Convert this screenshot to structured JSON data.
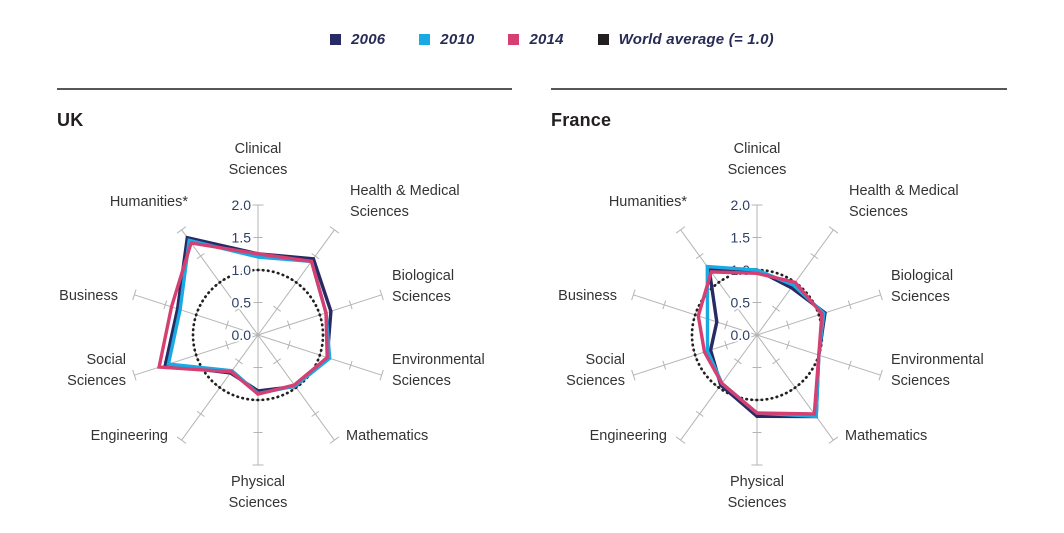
{
  "legend": {
    "items": [
      {
        "label": "2006",
        "color": "#272a63"
      },
      {
        "label": "2010",
        "color": "#19a9e3"
      },
      {
        "label": "2014",
        "color": "#d63f72"
      },
      {
        "label": "World average (= 1.0)",
        "color": "#231f20"
      }
    ]
  },
  "chart_data": [
    {
      "type": "radar",
      "title": "UK",
      "categories": [
        "Clinical Sciences",
        "Health & Medical Sciences",
        "Biological Sciences",
        "Environmental Sciences",
        "Mathematics",
        "Physical Sciences",
        "Engineering",
        "Social Sciences",
        "Business",
        "Humanities*"
      ],
      "category_lines": [
        [
          "Clinical",
          "Sciences"
        ],
        [
          "Health & Medical",
          "Sciences"
        ],
        [
          "Biological",
          "Sciences"
        ],
        [
          "Environmental",
          "Sciences"
        ],
        [
          "Mathematics"
        ],
        [
          "Physical",
          "Sciences"
        ],
        [
          "Engineering"
        ],
        [
          "Social",
          "Sciences"
        ],
        [
          "Business"
        ],
        [
          "Humanities*"
        ]
      ],
      "series": [
        {
          "name": "2006",
          "color": "#272a63",
          "values": [
            1.25,
            1.45,
            1.18,
            1.12,
            0.98,
            0.86,
            0.72,
            1.5,
            1.3,
            1.85
          ]
        },
        {
          "name": "2010",
          "color": "#19a9e3",
          "values": [
            1.2,
            1.4,
            1.1,
            1.16,
            0.97,
            0.9,
            0.68,
            1.45,
            1.26,
            1.8
          ]
        },
        {
          "name": "2014",
          "color": "#d63f72",
          "values": [
            1.25,
            1.4,
            1.1,
            1.12,
            0.95,
            0.91,
            0.7,
            1.6,
            1.4,
            1.75
          ]
        }
      ],
      "reference": {
        "name": "World average (= 1.0)",
        "value": 1.0,
        "style": "dotted",
        "color": "#231f20"
      },
      "r_axis": {
        "min": 0,
        "max": 2,
        "ticks": [
          "0.0",
          "0.5",
          "1.0",
          "1.5",
          "2.0"
        ]
      },
      "legend_position": "top",
      "grid": false
    },
    {
      "type": "radar",
      "title": "France",
      "categories": [
        "Clinical Sciences",
        "Health & Medical Sciences",
        "Biological Sciences",
        "Environmental Sciences",
        "Mathematics",
        "Physical Sciences",
        "Engineering",
        "Social Sciences",
        "Business",
        "Humanities*"
      ],
      "category_lines": [
        [
          "Clinical",
          "Sciences"
        ],
        [
          "Health & Medical",
          "Sciences"
        ],
        [
          "Biological",
          "Sciences"
        ],
        [
          "Environmental",
          "Sciences"
        ],
        [
          "Mathematics"
        ],
        [
          "Physical",
          "Sciences"
        ],
        [
          "Engineering"
        ],
        [
          "Social",
          "Sciences"
        ],
        [
          "Business"
        ],
        [
          "Humanities*"
        ]
      ],
      "series": [
        {
          "name": "2006",
          "color": "#272a63",
          "values": [
            1.0,
            0.9,
            1.1,
            1.0,
            1.55,
            1.25,
            0.95,
            0.75,
            0.65,
            1.25
          ]
        },
        {
          "name": "2010",
          "color": "#19a9e3",
          "values": [
            1.0,
            0.95,
            1.08,
            1.0,
            1.55,
            1.2,
            0.92,
            0.8,
            0.8,
            1.3
          ]
        },
        {
          "name": "2014",
          "color": "#d63f72",
          "values": [
            0.95,
            1.0,
            1.05,
            1.0,
            1.5,
            1.2,
            0.92,
            0.85,
            0.95,
            1.2
          ]
        }
      ],
      "reference": {
        "name": "World average (= 1.0)",
        "value": 1.0,
        "style": "dotted",
        "color": "#231f20"
      },
      "r_axis": {
        "min": 0,
        "max": 2,
        "ticks": [
          "0.0",
          "0.5",
          "1.0",
          "1.5",
          "2.0"
        ]
      },
      "legend_position": "top",
      "grid": false
    }
  ]
}
